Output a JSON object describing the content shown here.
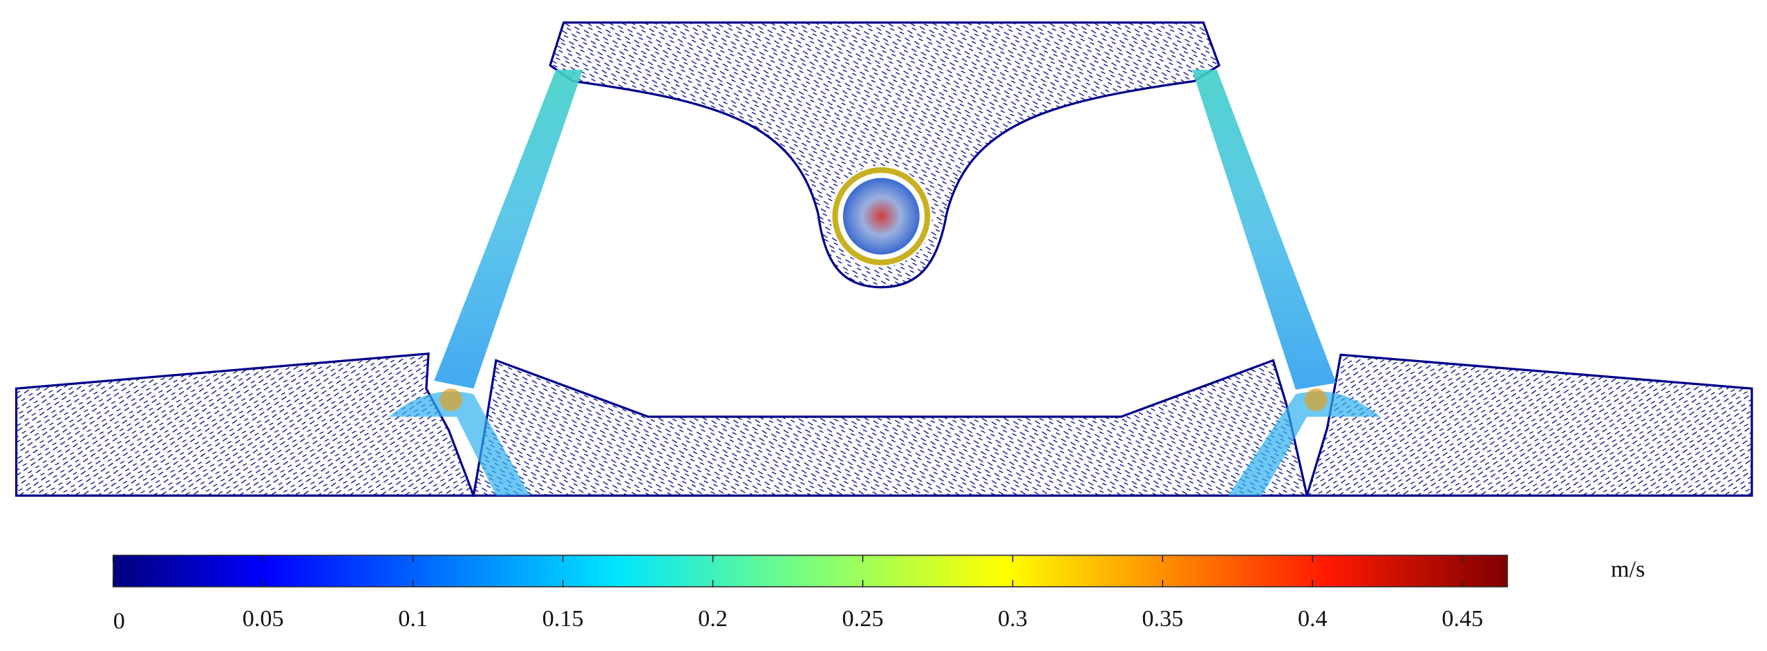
{
  "colorbar": {
    "label": "m/s",
    "lim": [
      0,
      0.465
    ],
    "ticks": [
      0,
      0.05,
      0.1,
      0.15,
      0.2,
      0.25,
      0.3,
      0.35,
      0.4,
      0.45
    ]
  }
}
